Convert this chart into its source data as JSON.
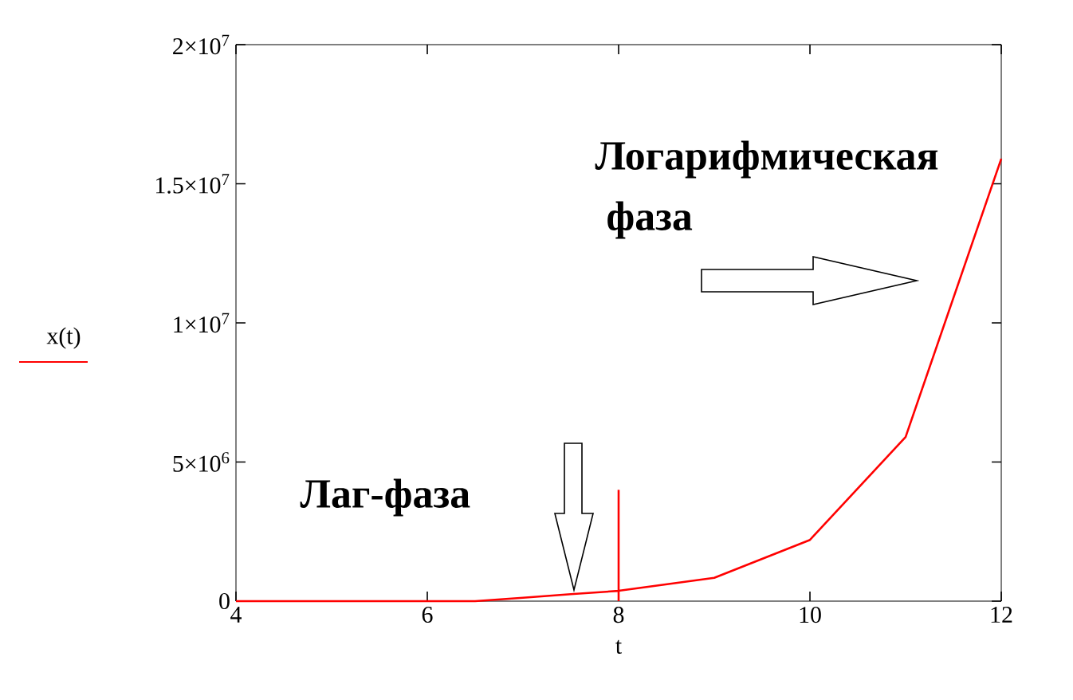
{
  "chart_data": {
    "type": "line",
    "xlabel": "t",
    "x": [
      4,
      5,
      6,
      6.5,
      7,
      7.5,
      8,
      9,
      10,
      11,
      12
    ],
    "series": [
      {
        "name": "x(t)",
        "color": "#ff0000",
        "values": [
          0,
          0,
          0,
          0,
          120000,
          250000,
          370000,
          840000,
          2200000,
          5900000,
          15900000
        ]
      },
      {
        "color": "#ff0000",
        "x": [
          8,
          8
        ],
        "values": [
          0,
          4000000
        ]
      }
    ],
    "xlim": [
      4,
      12
    ],
    "xticks": [
      4,
      6,
      8,
      10,
      12
    ],
    "ylim": [
      0,
      20000000
    ],
    "yticks": [
      0,
      {
        "value": 5000000,
        "label": "5×10$^{6}$"
      },
      {
        "value": 10000000,
        "label": "1×10$^{7}$"
      },
      {
        "value": 15000000,
        "label": "1.5×10$^{7}$"
      },
      {
        "value": 20000000,
        "label": "2×10$^{7}$"
      }
    ],
    "legend": "left",
    "grid": false,
    "marker": "none",
    "line_style": "solid",
    "annotations": [
      "Логарифмическая",
      "фаза",
      "Лаг-фаза"
    ]
  }
}
